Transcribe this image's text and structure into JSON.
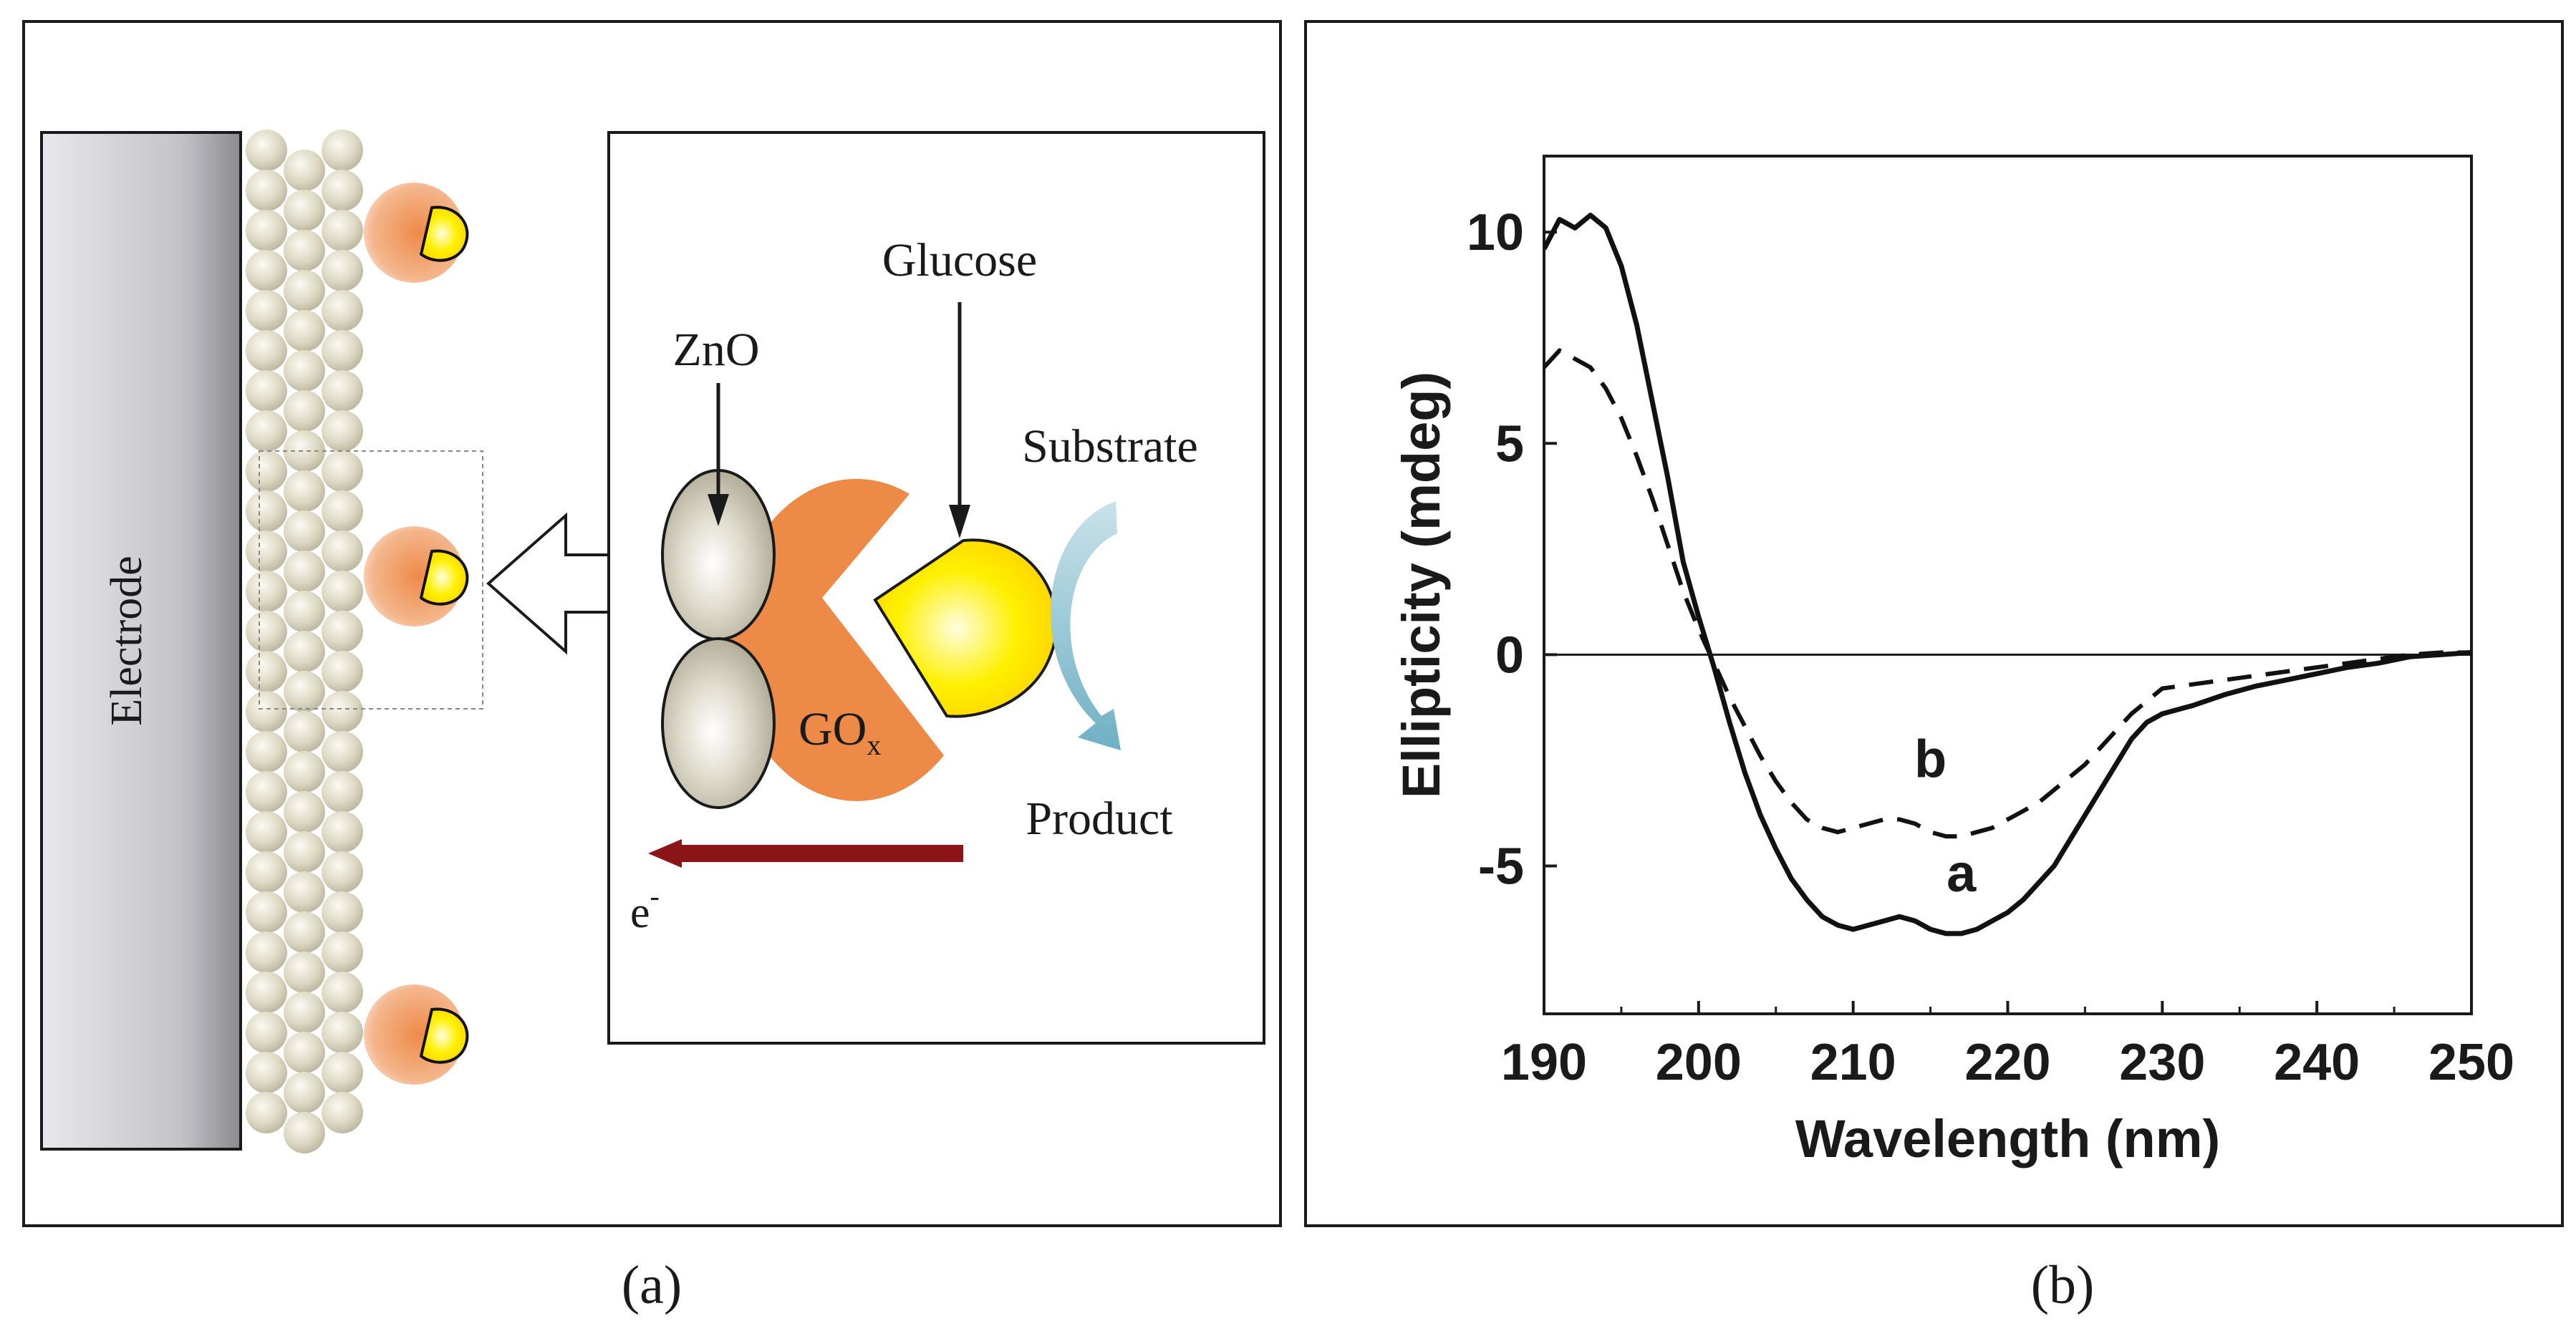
{
  "panel_a": {
    "caption": "(a)",
    "electrode_label": "Electrode",
    "zno_label": "ZnO",
    "glucose_label": "Glucose",
    "substrate_label": "Substrate",
    "gox_label": "GO",
    "gox_subscript": "x",
    "product_label": "Product",
    "electron_label": "e",
    "electron_superscript": "-",
    "colors": {
      "enzyme": "#ee8a48",
      "glucose_fill": "#ffe600",
      "electron_arrow": "#8b1418",
      "substrate_arrow": "#7ab6c8",
      "electrode": "#b9b9b9",
      "zno_bead": "#d8d4bf"
    }
  },
  "panel_b": {
    "caption": "(b)"
  },
  "chart_data": {
    "type": "line",
    "title": "",
    "xlabel": "Wavelength (nm)",
    "ylabel": "Ellipticity (mdeg)",
    "xlim": [
      190,
      250
    ],
    "ylim": [
      -8.5,
      11.8
    ],
    "xticks": [
      190,
      200,
      210,
      220,
      230,
      240,
      250
    ],
    "yticks": [
      -5,
      0,
      5,
      10
    ],
    "ytick_labels": [
      "-5",
      "0",
      "5",
      "10"
    ],
    "grid": false,
    "series": [
      {
        "name": "a",
        "style": "solid",
        "x": [
          190,
          191,
          192,
          193,
          194,
          195,
          196,
          197,
          198,
          199,
          200,
          201,
          202,
          203,
          204,
          205,
          206,
          207,
          208,
          209,
          210,
          211,
          212,
          213,
          214,
          215,
          216,
          217,
          218,
          219,
          220,
          221,
          222,
          223,
          224,
          225,
          226,
          227,
          228,
          229,
          230,
          232,
          234,
          236,
          238,
          240,
          242,
          244,
          246,
          248,
          250
        ],
        "y": [
          9.6,
          10.3,
          10.1,
          10.4,
          10.1,
          9.2,
          7.8,
          6.0,
          4.2,
          2.2,
          0.9,
          -0.3,
          -1.6,
          -2.8,
          -3.8,
          -4.6,
          -5.3,
          -5.8,
          -6.2,
          -6.4,
          -6.5,
          -6.4,
          -6.3,
          -6.2,
          -6.3,
          -6.5,
          -6.6,
          -6.6,
          -6.5,
          -6.3,
          -6.1,
          -5.8,
          -5.4,
          -5.0,
          -4.4,
          -3.8,
          -3.2,
          -2.6,
          -2.0,
          -1.6,
          -1.4,
          -1.2,
          -0.95,
          -0.75,
          -0.6,
          -0.45,
          -0.3,
          -0.2,
          -0.05,
          0.0,
          0.05
        ]
      },
      {
        "name": "b",
        "style": "dashed",
        "x": [
          190,
          191,
          192,
          193,
          194,
          195,
          196,
          197,
          198,
          199,
          200,
          201,
          202,
          203,
          204,
          205,
          206,
          207,
          208,
          209,
          210,
          211,
          212,
          213,
          214,
          215,
          216,
          217,
          218,
          219,
          220,
          221,
          222,
          223,
          224,
          225,
          226,
          227,
          228,
          229,
          230,
          232,
          234,
          236,
          238,
          240,
          242,
          244,
          246,
          248,
          250
        ],
        "y": [
          6.8,
          7.2,
          7.0,
          6.8,
          6.3,
          5.6,
          4.7,
          3.7,
          2.6,
          1.5,
          0.6,
          -0.2,
          -1.0,
          -1.7,
          -2.4,
          -3.0,
          -3.5,
          -3.9,
          -4.1,
          -4.2,
          -4.1,
          -4.0,
          -3.9,
          -3.9,
          -4.0,
          -4.2,
          -4.3,
          -4.3,
          -4.2,
          -4.1,
          -3.9,
          -3.7,
          -3.5,
          -3.2,
          -2.9,
          -2.6,
          -2.2,
          -1.8,
          -1.4,
          -1.1,
          -0.8,
          -0.7,
          -0.6,
          -0.5,
          -0.4,
          -0.3,
          -0.2,
          -0.1,
          0.0,
          0.05,
          0.05
        ]
      }
    ],
    "annotations": [
      {
        "text": "a",
        "x": 217,
        "y": -5.6
      },
      {
        "text": "b",
        "x": 215,
        "y": -2.9
      }
    ]
  }
}
